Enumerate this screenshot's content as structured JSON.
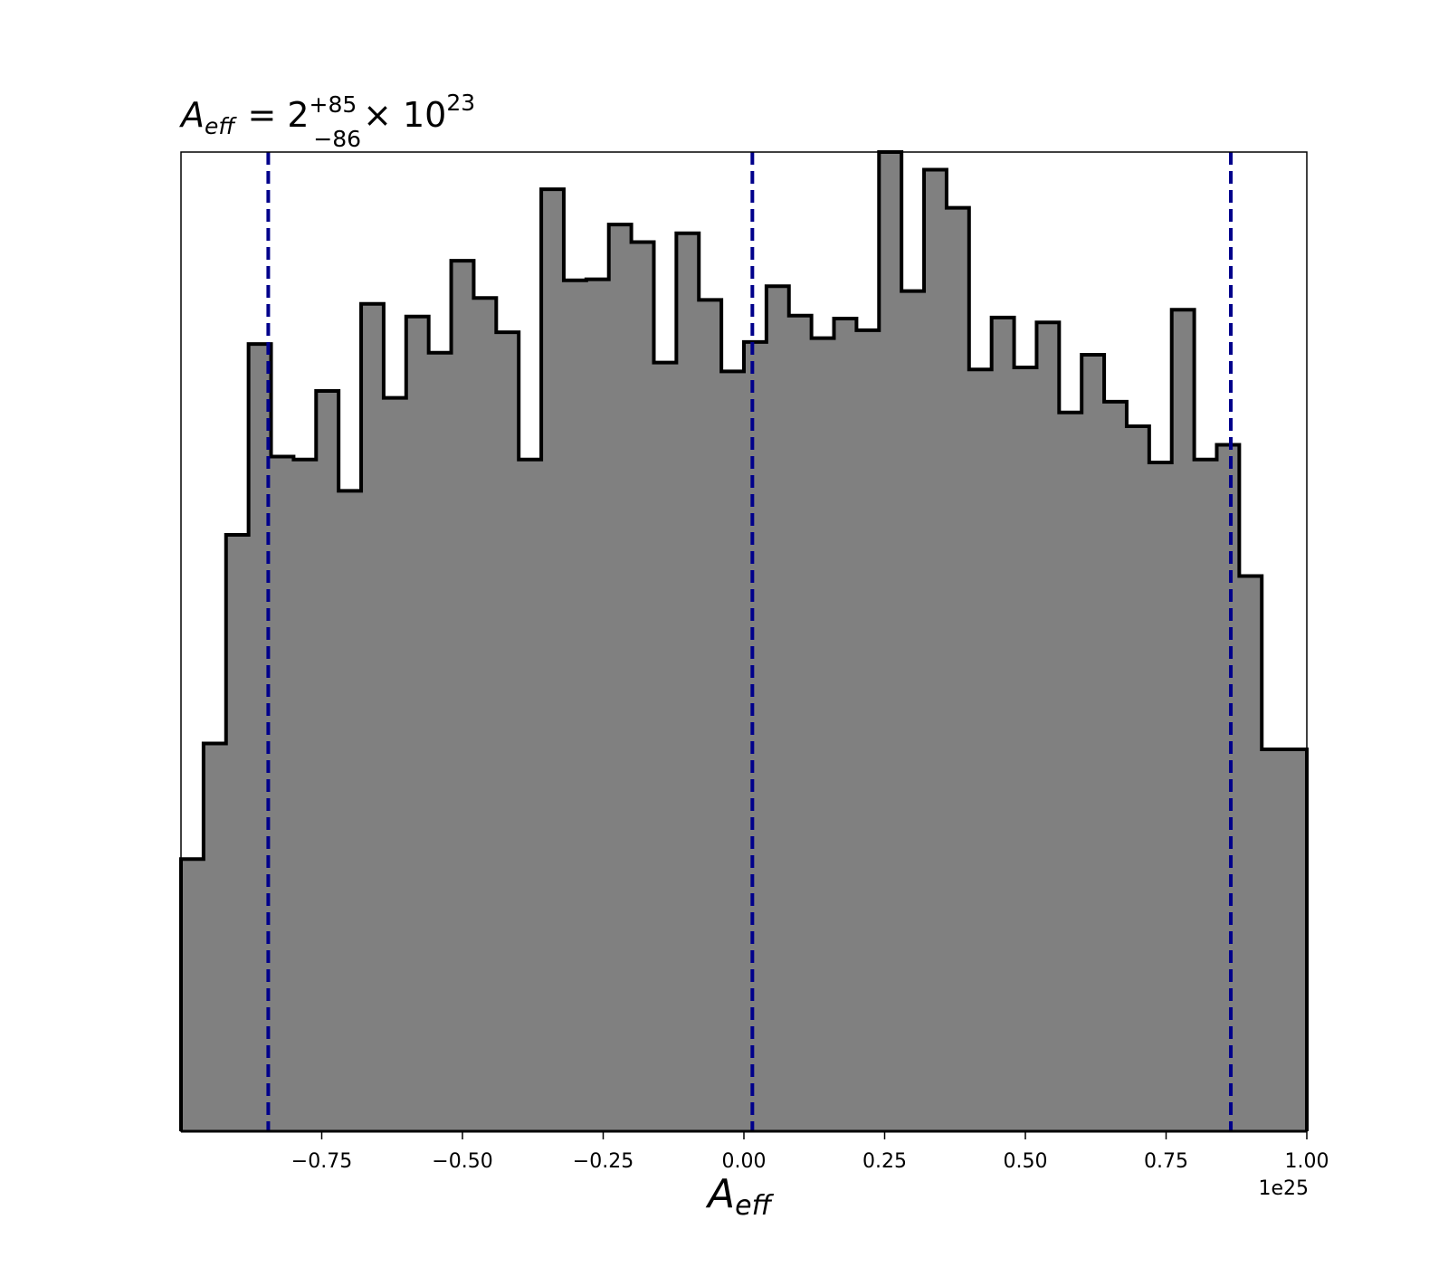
{
  "chart_data": {
    "type": "histogram",
    "title": {
      "symbol": "A",
      "symbol_subscript": "eff",
      "equals": "= 2",
      "upper": "+85",
      "lower": "−86",
      "times": "× 10",
      "exponent": "23"
    },
    "xlabel": {
      "symbol": "A",
      "subscript": "eff"
    },
    "offset_label": "1e25",
    "xlim": [
      -1.0,
      1.0
    ],
    "ylim": [
      0,
      1.0
    ],
    "xticks": [
      {
        "value": -0.75,
        "label": "−0.75"
      },
      {
        "value": -0.5,
        "label": "−0.50"
      },
      {
        "value": -0.25,
        "label": "−0.25"
      },
      {
        "value": 0.0,
        "label": "0.00"
      },
      {
        "value": 0.25,
        "label": "0.25"
      },
      {
        "value": 0.5,
        "label": "0.50"
      },
      {
        "value": 0.75,
        "label": "0.75"
      },
      {
        "value": 1.0,
        "label": "1.00"
      }
    ],
    "bins": {
      "start": -1.0,
      "width": 0.04,
      "heights": [
        0.278,
        0.396,
        0.609,
        0.804,
        0.689,
        0.686,
        0.756,
        0.654,
        0.845,
        0.749,
        0.832,
        0.795,
        0.889,
        0.851,
        0.816,
        0.686,
        0.962,
        0.869,
        0.87,
        0.926,
        0.908,
        0.785,
        0.917,
        0.849,
        0.776,
        0.806,
        0.863,
        0.833,
        0.81,
        0.83,
        0.818,
        1.0,
        0.858,
        0.982,
        0.943,
        0.778,
        0.831,
        0.78,
        0.826,
        0.734,
        0.793,
        0.745,
        0.72,
        0.683,
        0.839,
        0.686,
        0.701,
        0.567,
        0.39,
        0.39
      ]
    },
    "vlines": [
      -0.845,
      0.015,
      0.865
    ],
    "colors": {
      "fill": "#808080",
      "edge": "#000000",
      "vline": "#00008b"
    },
    "grid": false,
    "legend": "none"
  }
}
